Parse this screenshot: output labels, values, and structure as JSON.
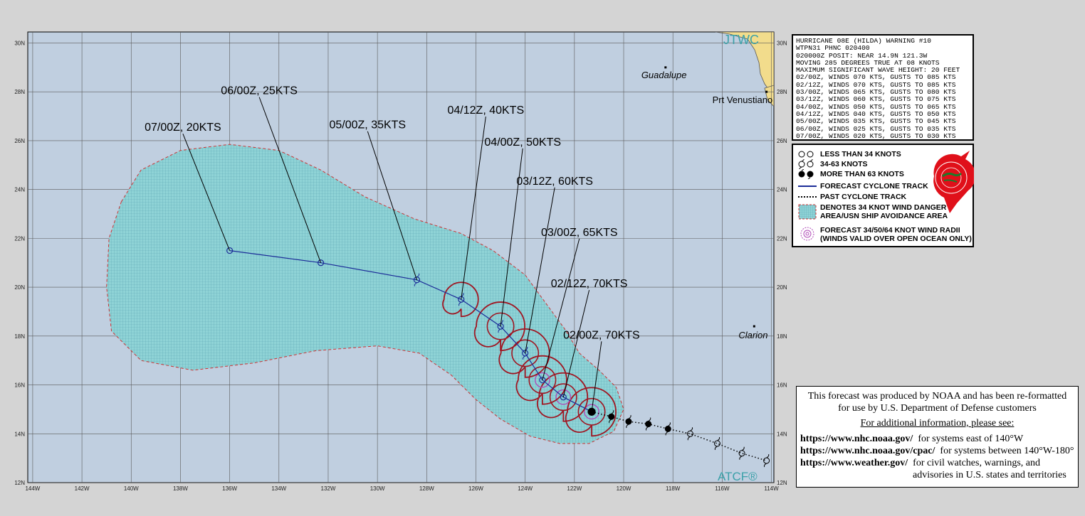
{
  "map": {
    "agency_logo": "JTWC",
    "atcf_logo": "ATCF®",
    "lon_labels": [
      "144W",
      "142W",
      "140W",
      "138W",
      "136W",
      "134W",
      "132W",
      "130W",
      "128W",
      "126W",
      "124W",
      "122W",
      "120W",
      "118W",
      "116W",
      "114W"
    ],
    "lat_labels": [
      "12N",
      "14N",
      "16N",
      "18N",
      "20N",
      "22N",
      "24N",
      "26N",
      "28N",
      "30N"
    ],
    "places": [
      {
        "name": "Guadalupe",
        "lon": -118.3,
        "lat": 29.0
      },
      {
        "name": "Prt Venustiano",
        "lon": -114.2,
        "lat": 28.0
      },
      {
        "name": "Clarion",
        "lon": -114.7,
        "lat": 18.4
      }
    ],
    "colors": {
      "ocean": "#c0cfe0",
      "land": "#f2dc8c",
      "danger": "#7ecfd4",
      "radii": "#a01622",
      "track": "#1c2c98",
      "grid": "#5a5a5a"
    }
  },
  "track": {
    "forecast": [
      {
        "label": "02/00Z, 70KTS",
        "lon": -121.3,
        "lat": 14.9,
        "kts": 70,
        "label_lon": -120.9,
        "label_lat": 17.9
      },
      {
        "label": "02/12Z, 70KTS",
        "lon": -122.45,
        "lat": 15.5,
        "kts": 70,
        "label_lon": -121.4,
        "label_lat": 20.0
      },
      {
        "label": "03/00Z, 65KTS",
        "lon": -123.3,
        "lat": 16.2,
        "kts": 65,
        "label_lon": -121.8,
        "label_lat": 22.1
      },
      {
        "label": "03/12Z, 60KTS",
        "lon": -124.0,
        "lat": 17.3,
        "kts": 60,
        "label_lon": -122.8,
        "label_lat": 24.2
      },
      {
        "label": "04/00Z, 50KTS",
        "lon": -125.0,
        "lat": 18.4,
        "kts": 50,
        "label_lon": -124.1,
        "label_lat": 25.8
      },
      {
        "label": "04/12Z, 40KTS",
        "lon": -126.6,
        "lat": 19.5,
        "kts": 40,
        "label_lon": -125.6,
        "label_lat": 27.1
      },
      {
        "label": "05/00Z, 35KTS",
        "lon": -128.4,
        "lat": 20.3,
        "kts": 35,
        "label_lon": -130.4,
        "label_lat": 26.5
      },
      {
        "label": "06/00Z, 25KTS",
        "lon": -132.3,
        "lat": 21.0,
        "kts": 25,
        "label_lon": -134.8,
        "label_lat": 27.9
      },
      {
        "label": "07/00Z, 20KTS",
        "lon": -136.0,
        "lat": 21.5,
        "kts": 20,
        "label_lon": -137.9,
        "label_lat": 26.4
      }
    ],
    "past": [
      {
        "lon": -120.5,
        "lat": 14.7,
        "kts": 70
      },
      {
        "lon": -119.8,
        "lat": 14.5,
        "kts": 70
      },
      {
        "lon": -119.0,
        "lat": 14.4,
        "kts": 70
      },
      {
        "lon": -118.2,
        "lat": 14.2,
        "kts": 70
      },
      {
        "lon": -117.3,
        "lat": 14.0,
        "kts": 50
      },
      {
        "lon": -116.2,
        "lat": 13.6,
        "kts": 50
      },
      {
        "lon": -115.2,
        "lat": 13.2,
        "kts": 50
      },
      {
        "lon": -114.2,
        "lat": 12.9,
        "kts": 50
      }
    ],
    "danger_area": [
      [
        -140.4,
        23.5
      ],
      [
        -139.6,
        24.8
      ],
      [
        -138.0,
        25.6
      ],
      [
        -136.0,
        25.85
      ],
      [
        -134.0,
        25.6
      ],
      [
        -132.3,
        24.8
      ],
      [
        -130.5,
        23.7
      ],
      [
        -128.5,
        22.8
      ],
      [
        -126.6,
        22.2
      ],
      [
        -125.3,
        21.5
      ],
      [
        -124.0,
        20.5
      ],
      [
        -123.2,
        19.4
      ],
      [
        -122.4,
        18.3
      ],
      [
        -121.8,
        17.3
      ],
      [
        -121.0,
        16.6
      ],
      [
        -120.3,
        15.9
      ],
      [
        -120.0,
        15.0
      ],
      [
        -120.4,
        14.1
      ],
      [
        -121.4,
        13.6
      ],
      [
        -122.6,
        13.6
      ],
      [
        -123.8,
        13.9
      ],
      [
        -125.0,
        14.6
      ],
      [
        -126.0,
        15.4
      ],
      [
        -127.0,
        16.4
      ],
      [
        -128.3,
        17.3
      ],
      [
        -130.0,
        17.6
      ],
      [
        -132.5,
        17.4
      ],
      [
        -135.0,
        16.9
      ],
      [
        -137.5,
        16.6
      ],
      [
        -139.6,
        17.0
      ],
      [
        -140.8,
        18.2
      ],
      [
        -141.0,
        20.0
      ],
      [
        -140.9,
        22.0
      ]
    ]
  },
  "warning": {
    "lines": [
      "HURRICANE 08E (HILDA) WARNING #10",
      "WTPN31 PHNC 020400",
      "020000Z POSIT: NEAR 14.9N 121.3W",
      "MOVING 285 DEGREES TRUE AT 08 KNOTS",
      "MAXIMUM SIGNIFICANT WAVE HEIGHT: 20 FEET",
      "02/00Z, WINDS 070 KTS, GUSTS TO 085 KTS",
      "02/12Z, WINDS 070 KTS, GUSTS TO 085 KTS",
      "03/00Z, WINDS 065 KTS, GUSTS TO 080 KTS",
      "03/12Z, WINDS 060 KTS, GUSTS TO 075 KTS",
      "04/00Z, WINDS 050 KTS, GUSTS TO 065 KTS",
      "04/12Z, WINDS 040 KTS, GUSTS TO 050 KTS",
      "05/00Z, WINDS 035 KTS, GUSTS TO 045 KTS",
      "06/00Z, WINDS 025 KTS, GUSTS TO 035 KTS",
      "07/00Z, WINDS 020 KTS, GUSTS TO 030 KTS"
    ]
  },
  "legend": {
    "less34": "LESS THAN 34 KNOTS",
    "range34_63": "34-63 KNOTS",
    "more63": "MORE THAN 63 KNOTS",
    "forecast_track": "FORECAST CYCLONE TRACK",
    "past_track": "PAST CYCLONE TRACK",
    "danger_line1": "DENOTES 34 KNOT WIND DANGER",
    "danger_line2": "AREA/USN SHIP AVOIDANCE AREA",
    "radii_line1": "FORECAST 34/50/64 KNOT WIND RADII",
    "radii_line2": "(WINDS VALID OVER OPEN OCEAN ONLY)",
    "seal_text": "JOINT TYPHOON WARNING CENTER PEARL HARBOR HAWAII"
  },
  "info": {
    "line1": "This forecast was produced by NOAA and has been re-formatted",
    "line2": "for use by U.S. Department of Defense customers",
    "line3": "For additional information, please see:",
    "links": [
      {
        "url": "https://www.nhc.noaa.gov/",
        "desc": "for systems east of 140°W"
      },
      {
        "url": "https://www.nhc.noaa.gov/cpac/",
        "desc": "for systems between 140°W-180°"
      },
      {
        "url": "https://www.weather.gov/",
        "desc": "for civil watches, warnings, and"
      }
    ],
    "line_last": "advisories in U.S. states and territories"
  }
}
